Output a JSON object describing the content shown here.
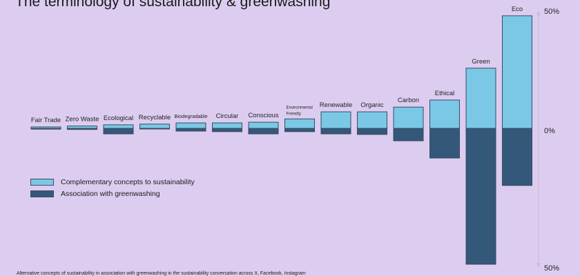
{
  "title": "The terminology of sustainability & greenwashing",
  "footer": "Alternative concepts of sustainability in association with greenwashing in the sustainability conversation across X, Facebook, Instagram",
  "colors": {
    "complementary": "#7ac8e6",
    "greenwashing": "#34587a",
    "border": "#3a4a5e",
    "background": "#dccdf0"
  },
  "chart_data": {
    "type": "bar",
    "title": "The terminology of sustainability & greenwashing",
    "categories": [
      "Fair Trade",
      "Zero Waste",
      "Ecological",
      "Recyclable",
      "Biodegradable",
      "Circular",
      "Conscious",
      "Environmental Friendly",
      "Renewable",
      "Organic",
      "Carbon",
      "Ethical",
      "Green",
      "Eco"
    ],
    "series": [
      {
        "name": "Complementary concepts to sustainability",
        "direction": "up",
        "values": [
          0.6,
          1,
          1.5,
          1.8,
          2.3,
          2.3,
          2.6,
          4,
          7,
          7,
          9,
          12,
          25.5,
          47.7
        ]
      },
      {
        "name": "Association with greenwashing",
        "direction": "down",
        "values": [
          0.3,
          0.4,
          2,
          0.2,
          1,
          1.2,
          2,
          1.2,
          2,
          2.2,
          4.5,
          10.7,
          49,
          20.6
        ]
      }
    ],
    "axis_labels": {
      "top": "50%",
      "zero": "0%",
      "bottom": "50%"
    },
    "ylim": [
      -50,
      50
    ],
    "legend_position": "left-middle"
  }
}
